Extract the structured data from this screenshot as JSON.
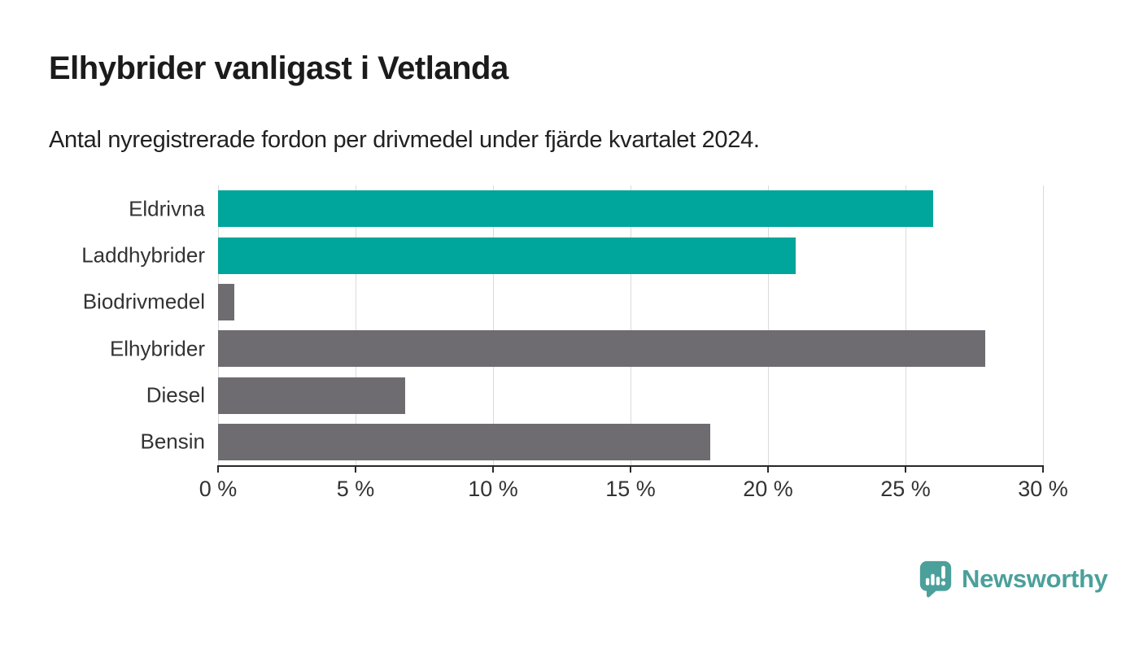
{
  "header": {
    "title": "Elhybrider vanligast i Vetlanda",
    "subtitle": "Antal nyregistrerade fordon per drivmedel under fjärde kvartalet 2024."
  },
  "chart_data": {
    "type": "bar",
    "orientation": "horizontal",
    "categories": [
      "Eldrivna",
      "Laddhybrider",
      "Biodrivmedel",
      "Elhybrider",
      "Diesel",
      "Bensin"
    ],
    "values": [
      26.0,
      21.0,
      0.6,
      27.9,
      6.8,
      17.9
    ],
    "bar_colors": [
      "#00a59b",
      "#00a59b",
      "#6e6c70",
      "#6e6c70",
      "#6e6c70",
      "#6e6c70"
    ],
    "title": "Elhybrider vanligast i Vetlanda",
    "subtitle": "Antal nyregistrerade fordon per drivmedel under fjärde kvartalet 2024.",
    "xlabel": "",
    "ylabel": "",
    "xlim": [
      0,
      30
    ],
    "x_ticks": [
      0,
      5,
      10,
      15,
      20,
      25,
      30
    ],
    "x_tick_labels": [
      "0 %",
      "5 %",
      "10 %",
      "15 %",
      "20 %",
      "25 %",
      "30 %"
    ],
    "grid": true,
    "legend": false,
    "highlight_color": "#00a59b",
    "default_color": "#6e6c70"
  },
  "branding": {
    "logo_text": "Newsworthy",
    "logo_color": "#4ba09b",
    "logo_icon": "pin-bar-chart-icon"
  },
  "colors": {
    "background": "#ffffff",
    "gridline": "#dadada",
    "axis": "#282828",
    "label": "#333333",
    "title": "#1b1b1b"
  }
}
